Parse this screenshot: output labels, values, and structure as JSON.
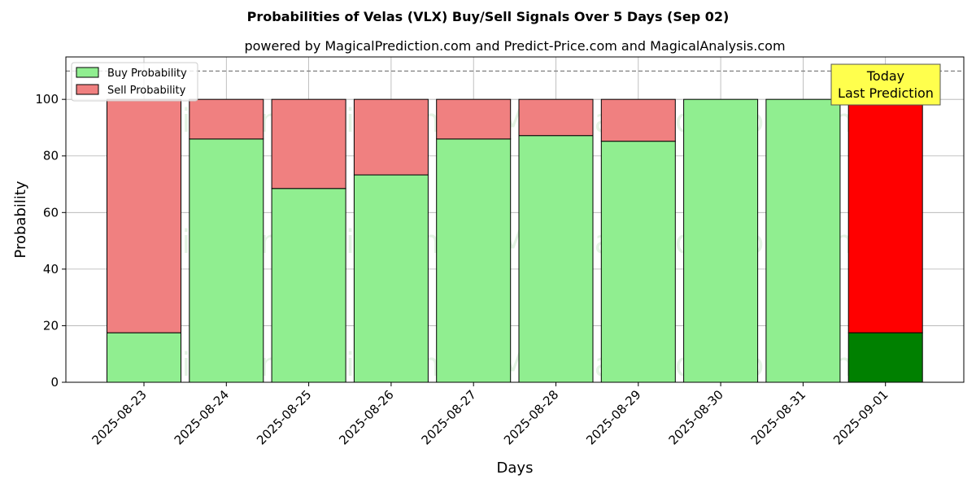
{
  "chart_data": {
    "type": "bar",
    "stacked": true,
    "title": "Probabilities of Velas (VLX) Buy/Sell Signals Over 5 Days (Sep 02)",
    "subtitle": "powered by MagicalPrediction.com and Predict-Price.com and MagicalAnalysis.com",
    "xlabel": "Days",
    "ylabel": "Probability",
    "ylim": [
      0,
      115
    ],
    "yticks": [
      0,
      20,
      40,
      60,
      80,
      100
    ],
    "grid": true,
    "legend_position": "top-left",
    "categories": [
      "2025-08-23",
      "2025-08-24",
      "2025-08-25",
      "2025-08-26",
      "2025-08-27",
      "2025-08-28",
      "2025-08-29",
      "2025-08-30",
      "2025-08-31",
      "2025-09-01"
    ],
    "series": [
      {
        "name": "Buy Probability",
        "color": "#90ee90",
        "values": [
          17.5,
          86,
          68.5,
          73.3,
          86,
          87.2,
          85.2,
          100,
          100,
          17.5
        ]
      },
      {
        "name": "Sell Probability",
        "color": "#f08080",
        "values": [
          82.5,
          14,
          31.5,
          26.7,
          14,
          12.8,
          14.8,
          0,
          0,
          82.5
        ]
      }
    ],
    "highlight": {
      "index": 9,
      "buy_color": "#008000",
      "sell_color": "#ff0000"
    },
    "reference_line": {
      "y": 110,
      "style": "dashed",
      "color": "#808080"
    },
    "annotation": {
      "lines": [
        "Today",
        "Last Prediction"
      ],
      "background": "#ffff4d"
    },
    "watermarks": [
      "MagicalAnalysis.com",
      "MagicalPrediction.com"
    ]
  }
}
